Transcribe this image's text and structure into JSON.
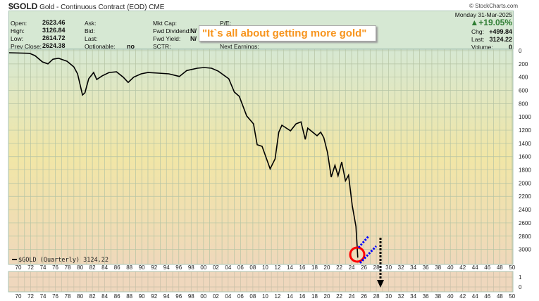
{
  "header": {
    "symbol": "$GOLD",
    "name": "Gold - Continuous Contract (EOD)",
    "exchange": "CME",
    "brand": "© StockCharts.com",
    "date": "Monday  31-Mar-2025",
    "pct_change": "+19.05%",
    "fields": {
      "open_label": "Open:",
      "open": "2623.46",
      "high_label": "High:",
      "high": "3126.84",
      "low_label": "Low:",
      "low": "2614.72",
      "prev_close_label": "Prev Close:",
      "prev_close": "2624.38",
      "ask_label": "Ask:",
      "bid_label": "Bid:",
      "last_label_mid": "Last:",
      "optionable_label": "Optionable:",
      "optionable": "no",
      "mkt_cap_label": "Mkt Cap:",
      "fwd_dividend_label": "Fwd Dividend:",
      "fwd_dividend": "N/",
      "fwd_yield_label": "Fwd Yield:",
      "fwd_yield": "N/",
      "sctr_label": "SCTR:",
      "pe_label": "P/E:",
      "next_earnings_label": "Next Earnings:",
      "chg_label": "Chg:",
      "chg": "+499.84",
      "last_label": "Last:",
      "last": "3124.22",
      "volume_label": "Volume:",
      "volume": "0"
    },
    "annotation": "\"It`s all about getting more gold\""
  },
  "colors": {
    "line": "#000000",
    "up": "#2e7d32",
    "annotation": "#f7941d",
    "circle": "#ff0000",
    "dotted": "#0000ff"
  },
  "chart_data": {
    "type": "line",
    "legend": "$GOLD (Quarterly) 3124.22",
    "legend_placement": "bottom-left",
    "y_inverted": true,
    "ylim": [
      0,
      3000
    ],
    "xlim": [
      1968.5,
      2050.5
    ],
    "yticks": [
      "0",
      "200",
      "400",
      "600",
      "800",
      "1000",
      "1200",
      "1400",
      "1600",
      "1800",
      "2000",
      "2200",
      "2400",
      "2600",
      "2800",
      "3000"
    ],
    "xticks": [
      "70",
      "72",
      "74",
      "76",
      "78",
      "80",
      "82",
      "84",
      "86",
      "88",
      "90",
      "92",
      "94",
      "96",
      "98",
      "00",
      "02",
      "04",
      "06",
      "08",
      "10",
      "12",
      "14",
      "16",
      "18",
      "20",
      "22",
      "24",
      "26",
      "28",
      "30",
      "32",
      "34",
      "36",
      "38",
      "40",
      "42",
      "44",
      "46",
      "48",
      "50"
    ],
    "lower_yticks": [
      "1",
      "0"
    ],
    "grid": true,
    "points": [
      [
        1968.5,
        32
      ],
      [
        1971.8,
        40
      ],
      [
        1972.7,
        75
      ],
      [
        1973.9,
        170
      ],
      [
        1974.8,
        200
      ],
      [
        1975.6,
        130
      ],
      [
        1976.5,
        115
      ],
      [
        1977.9,
        160
      ],
      [
        1979,
        245
      ],
      [
        1979.6,
        350
      ],
      [
        1980.4,
        670
      ],
      [
        1980.8,
        635
      ],
      [
        1981.4,
        425
      ],
      [
        1982.2,
        330
      ],
      [
        1982.7,
        435
      ],
      [
        1983.6,
        380
      ],
      [
        1984.7,
        330
      ],
      [
        1985.9,
        320
      ],
      [
        1987,
        400
      ],
      [
        1987.8,
        480
      ],
      [
        1988.7,
        400
      ],
      [
        1989.9,
        350
      ],
      [
        1991,
        330
      ],
      [
        1992.7,
        340
      ],
      [
        1994.4,
        350
      ],
      [
        1996.1,
        390
      ],
      [
        1997.3,
        300
      ],
      [
        1999,
        265
      ],
      [
        2000.1,
        255
      ],
      [
        2001.3,
        265
      ],
      [
        2002.4,
        310
      ],
      [
        2004.1,
        425
      ],
      [
        2005,
        625
      ],
      [
        2005.8,
        690
      ],
      [
        2007,
        985
      ],
      [
        2008.1,
        1105
      ],
      [
        2008.7,
        1420
      ],
      [
        2009.5,
        1445
      ],
      [
        2010.8,
        1785
      ],
      [
        2011.6,
        1635
      ],
      [
        2012.2,
        1230
      ],
      [
        2012.7,
        1125
      ],
      [
        2014.1,
        1210
      ],
      [
        2015,
        1105
      ],
      [
        2015.8,
        1075
      ],
      [
        2016.5,
        1340
      ],
      [
        2016.9,
        1170
      ],
      [
        2018.4,
        1285
      ],
      [
        2019,
        1230
      ],
      [
        2019.5,
        1315
      ],
      [
        2020.1,
        1540
      ],
      [
        2020.7,
        1910
      ],
      [
        2021.3,
        1730
      ],
      [
        2021.8,
        1890
      ],
      [
        2022.4,
        1680
      ],
      [
        2023,
        1965
      ],
      [
        2023.5,
        1880
      ],
      [
        2024.1,
        2335
      ],
      [
        2024.7,
        2655
      ],
      [
        2025,
        3124.22
      ]
    ]
  }
}
